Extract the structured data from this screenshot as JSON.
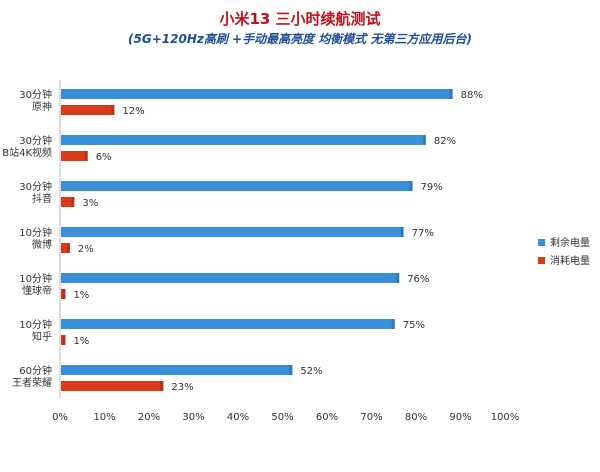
{
  "chart_data": {
    "type": "bar",
    "orientation": "horizontal",
    "title": "小米13 三小时续航测试",
    "subtitle": "(5G+120Hz高刷 +手动最高亮度 均衡模式 无第三方应用后台)",
    "categories": [
      [
        "30分钟",
        "原神"
      ],
      [
        "30分钟",
        "B站4K视频"
      ],
      [
        "30分钟",
        "抖音"
      ],
      [
        "10分钟",
        "微博"
      ],
      [
        "10分钟",
        "懂球帝"
      ],
      [
        "10分钟",
        "知乎"
      ],
      [
        "60分钟",
        "王者荣耀"
      ]
    ],
    "series": [
      {
        "name": "剩余电量",
        "color": "#3a8fd9",
        "values": [
          88,
          82,
          79,
          77,
          76,
          75,
          52
        ]
      },
      {
        "name": "消耗电量",
        "color": "#d93a1a",
        "values": [
          12,
          6,
          3,
          2,
          1,
          1,
          23
        ]
      }
    ],
    "value_suffix": "%",
    "xlim": [
      0,
      100
    ],
    "xticks": [
      "0%",
      "10%",
      "20%",
      "30%",
      "40%",
      "50%",
      "60%",
      "70%",
      "80%",
      "90%",
      "100%"
    ],
    "legend_position": "right",
    "grid": false
  }
}
